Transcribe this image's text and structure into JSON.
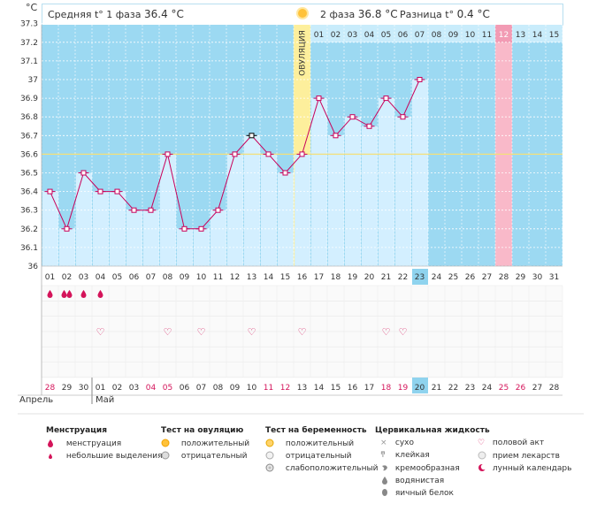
{
  "header": {
    "unit": "°C",
    "phase1_label": "Средняя t° 1 фаза",
    "phase1_value": "36.4 °C",
    "phase2_label": "2 фаза",
    "phase2_value": "36.8 °C",
    "diff_label": "Разница t°",
    "diff_value": "0.4 °C"
  },
  "ovulation_label": "ОВУЛЯЦИЯ",
  "phase2_day_numbers": [
    "01",
    "02",
    "03",
    "04",
    "05",
    "06",
    "07",
    "08",
    "09",
    "10",
    "11",
    "12",
    "13",
    "14",
    "15"
  ],
  "chart_data": {
    "type": "line",
    "y_ticks": [
      "37.3",
      "37.2",
      "37.1",
      "37",
      "36.9",
      "36.8",
      "36.7",
      "36.6",
      "36.5",
      "36.4",
      "36.3",
      "36.2",
      "36.1",
      "36"
    ],
    "ylim": [
      36,
      37.3
    ],
    "coverline": 36.6,
    "x": [
      "01",
      "02",
      "03",
      "04",
      "05",
      "06",
      "07",
      "08",
      "09",
      "10",
      "11",
      "12",
      "13",
      "14",
      "15",
      "16",
      "17",
      "18",
      "19",
      "20",
      "21",
      "22",
      "23",
      "24",
      "25",
      "26",
      "27",
      "28",
      "29",
      "30",
      "31"
    ],
    "temperatures": [
      36.4,
      36.2,
      36.5,
      36.4,
      36.4,
      36.3,
      36.3,
      36.6,
      36.2,
      36.2,
      36.3,
      36.6,
      36.7,
      36.6,
      36.5,
      36.6,
      36.9,
      36.7,
      36.8,
      36.75,
      36.9,
      36.8,
      37.0,
      null,
      null,
      null,
      null,
      null,
      null,
      null,
      null
    ],
    "current_day": "23",
    "ovulation_day": "16",
    "highlight_day": "28",
    "highlight_phase2_day": "12",
    "special_marker_day": "13"
  },
  "events": {
    "menstruation": [
      1,
      2,
      1,
      1
    ],
    "intercourse_days": [
      "04",
      "08",
      "10",
      "13",
      "16",
      "21",
      "22"
    ]
  },
  "dates": {
    "calendar": [
      "28",
      "29",
      "30",
      "01",
      "02",
      "03",
      "04",
      "05",
      "06",
      "07",
      "08",
      "09",
      "10",
      "11",
      "12",
      "13",
      "14",
      "15",
      "16",
      "17",
      "18",
      "19",
      "20",
      "21",
      "22",
      "23",
      "24",
      "25",
      "26",
      "27",
      "28"
    ],
    "red_dates": [
      "28",
      "04",
      "05",
      "11",
      "12",
      "18",
      "19",
      "25",
      "26"
    ],
    "current_date": "20",
    "month_prev": "Апрель",
    "month_next": "Май"
  },
  "legend": {
    "menstruation": {
      "title": "Менструация",
      "items": [
        "менструация",
        "небольшие выделения"
      ]
    },
    "ovulation_test": {
      "title": "Тест на овуляцию",
      "items": [
        "положительный",
        "отрицательный"
      ]
    },
    "pregnancy_test": {
      "title": "Тест на беременность",
      "items": [
        "положительный",
        "отрицательный",
        "слабоположительный"
      ]
    },
    "cervical": {
      "title": "Цервикальная жидкость",
      "items": [
        "сухо",
        "клейкая",
        "кремообразная",
        "водянистая",
        "яичный белок"
      ]
    },
    "other": {
      "items": [
        "половой акт",
        "прием лекарств",
        "лунный календарь"
      ]
    }
  },
  "colors": {
    "bg": "#9cd9f2",
    "bar": "#d3efff",
    "line": "#c8005a",
    "ovulation": "#fdef9c",
    "highlight": "#f9b9c9",
    "current": "#8fd3ee",
    "coverline": "#f4e07a"
  }
}
